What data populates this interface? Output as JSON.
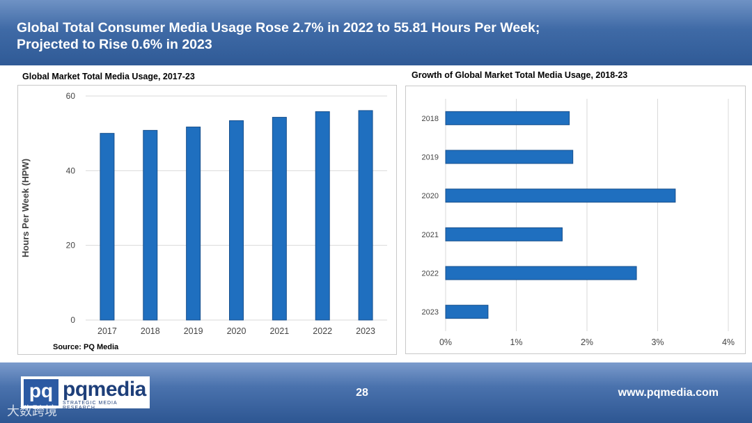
{
  "header": {
    "title_line1": "Global Total Consumer Media Usage Rose 2.7% in 2022 to 55.81 Hours Per Week;",
    "title_line2": "Projected to Rise 0.6% in 2023"
  },
  "left_panel": {
    "title": "Global Market Total Media Usage, 2017-23",
    "source": "Source: PQ Media"
  },
  "right_panel": {
    "title": "Growth of Global Market Total Media Usage, 2018-23"
  },
  "footer": {
    "page_number": "28",
    "website": "www.pqmedia.com",
    "logo_square": "pq",
    "logo_word": "pqmedia",
    "logo_tagline": "STRATEGIC MEDIA RESEARCH",
    "watermark": "大数跨境"
  },
  "colors": {
    "bar": "#1f6fbf",
    "bar_stroke": "#174f8c",
    "header_bg": "#3f6aa6",
    "grid": "#d9d9d9"
  },
  "chart_data": [
    {
      "type": "bar",
      "title": "Global Market Total Media Usage, 2017-23",
      "categories": [
        "2017",
        "2018",
        "2019",
        "2020",
        "2021",
        "2022",
        "2023"
      ],
      "values": [
        50.0,
        50.8,
        51.7,
        53.4,
        54.3,
        55.81,
        56.1
      ],
      "xlabel": "",
      "ylabel": "Hours Per Week (HPW)",
      "ylim": [
        0,
        60
      ],
      "yticks": [
        0,
        20,
        40,
        60
      ],
      "grid": true
    },
    {
      "type": "bar",
      "orientation": "horizontal",
      "title": "Growth of Global Market Total Media Usage, 2018-23",
      "categories": [
        "2018",
        "2019",
        "2020",
        "2021",
        "2022",
        "2023"
      ],
      "values": [
        1.75,
        1.8,
        3.25,
        1.65,
        2.7,
        0.6
      ],
      "xlim": [
        0,
        4
      ],
      "xticks": [
        "0%",
        "1%",
        "2%",
        "3%",
        "4%"
      ],
      "grid": true
    }
  ]
}
